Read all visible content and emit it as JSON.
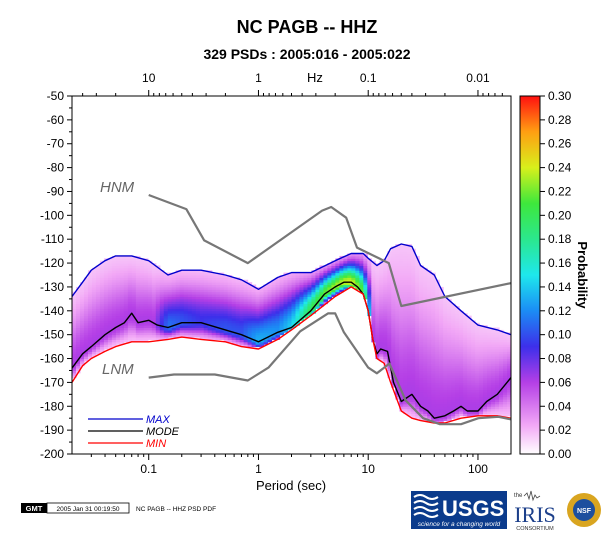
{
  "chart_data": {
    "type": "heatmap",
    "title": "NC PAGB -- HHZ",
    "subtitle": "329 PSDs : 2005:016 - 2005:022",
    "xlabel": "Period (sec)",
    "x_scale": "log",
    "xlim": [
      0.02,
      200
    ],
    "x_ticks": [
      0.1,
      1,
      10,
      100
    ],
    "top_axis_label": "Hz",
    "top_ticks": [
      10,
      1,
      0.1,
      0.01
    ],
    "ylabel": "",
    "ylim": [
      -200,
      -50
    ],
    "y_ticks": [
      -50,
      -60,
      -70,
      -80,
      -90,
      -100,
      -110,
      -120,
      -130,
      -140,
      -150,
      -160,
      -170,
      -180,
      -190,
      -200
    ],
    "colorbar": {
      "label": "Probability",
      "range": [
        0,
        0.3
      ],
      "ticks": [
        "0.00",
        "0.02",
        "0.04",
        "0.06",
        "0.08",
        "0.10",
        "0.12",
        "0.14",
        "0.16",
        "0.18",
        "0.20",
        "0.22",
        "0.24",
        "0.26",
        "0.28",
        "0.30"
      ]
    },
    "grid": false,
    "legend_position": "bottom-left",
    "series": [
      {
        "name": "MAX",
        "color": "#0000cc",
        "x": [
          0.02,
          0.025,
          0.03,
          0.04,
          0.05,
          0.07,
          0.1,
          0.15,
          0.2,
          0.3,
          0.5,
          0.7,
          1,
          1.5,
          2,
          3,
          5,
          7,
          9,
          10,
          12,
          14,
          16,
          20,
          25,
          30,
          40,
          50,
          70,
          100,
          150,
          200
        ],
        "y": [
          -134,
          -128,
          -123,
          -119,
          -117,
          -117,
          -119,
          -125,
          -123,
          -123,
          -125,
          -127,
          -131,
          -126,
          -124,
          -124,
          -119,
          -116,
          -116,
          -118,
          -121,
          -119,
          -114,
          -112,
          -113,
          -121,
          -125,
          -134,
          -140,
          -146,
          -148,
          -150
        ]
      },
      {
        "name": "MODE",
        "color": "#000000",
        "x": [
          0.02,
          0.025,
          0.03,
          0.04,
          0.05,
          0.06,
          0.07,
          0.08,
          0.1,
          0.12,
          0.15,
          0.2,
          0.3,
          0.5,
          0.7,
          1,
          1.5,
          2,
          3,
          4,
          5,
          6,
          7,
          8,
          9,
          10,
          11,
          12,
          13,
          15,
          17,
          20,
          25,
          30,
          35,
          40,
          50,
          60,
          70,
          80,
          100,
          120,
          150,
          200
        ],
        "y": [
          -164,
          -158,
          -155,
          -150,
          -147,
          -145,
          -141,
          -145,
          -144,
          -146,
          -147,
          -145,
          -145,
          -148,
          -150,
          -153,
          -149,
          -147,
          -140,
          -133,
          -130,
          -128,
          -128,
          -130,
          -133,
          -140,
          -152,
          -158,
          -156,
          -157,
          -170,
          -178,
          -175,
          -180,
          -182,
          -185,
          -184,
          -182,
          -180,
          -182,
          -182,
          -178,
          -175,
          -168
        ]
      },
      {
        "name": "MIN",
        "color": "#ff0000",
        "x": [
          0.02,
          0.025,
          0.03,
          0.04,
          0.05,
          0.07,
          0.1,
          0.15,
          0.2,
          0.3,
          0.5,
          0.7,
          1,
          1.5,
          2,
          3,
          5,
          7,
          9,
          10,
          11,
          12,
          14,
          16,
          20,
          25,
          30,
          40,
          50,
          70,
          100,
          150,
          200
        ],
        "y": [
          -170,
          -163,
          -160,
          -157,
          -155,
          -153,
          -153,
          -152,
          -151,
          -152,
          -153,
          -155,
          -156,
          -152,
          -148,
          -142,
          -134,
          -130,
          -133,
          -140,
          -152,
          -160,
          -162,
          -170,
          -182,
          -185,
          -186,
          -187,
          -187,
          -185,
          -184,
          -184,
          -185
        ]
      },
      {
        "name": "HNM",
        "color": "#777777",
        "x": [
          0.1,
          0.22,
          0.32,
          0.8,
          3.8,
          4.6,
          6.3,
          7.9,
          15.4,
          20,
          354.8
        ],
        "y": [
          -91.5,
          -97.4,
          -110.5,
          -120,
          -98,
          -96.5,
          -101,
          -113.5,
          -120,
          -138,
          -126
        ]
      },
      {
        "name": "LNM",
        "color": "#777777",
        "x": [
          0.1,
          0.17,
          0.4,
          0.8,
          1.24,
          2.4,
          4.3,
          5,
          6,
          10,
          12,
          15.6,
          21.9,
          31.6,
          45,
          70,
          101,
          154,
          328,
          600
        ],
        "y": [
          -168,
          -166.7,
          -166.7,
          -169.2,
          -163.7,
          -148.6,
          -141.1,
          -141.1,
          -149,
          -163.8,
          -166.2,
          -162.1,
          -177.5,
          -185,
          -187.5,
          -187.5,
          -185,
          -184.4,
          -187.5,
          -187.5
        ]
      }
    ]
  },
  "labels": {
    "hnm": "HNM",
    "lnm": "LNM"
  },
  "legend": [
    {
      "label": "MAX",
      "color": "#0000cc"
    },
    {
      "label": "MODE",
      "color": "#000000"
    },
    {
      "label": "MIN",
      "color": "#ff0000"
    }
  ],
  "footer": {
    "gmt_badge": "GMT",
    "timestamp": "2005 Jan 31 00:19:50",
    "caption": "NC PAGB -- HHZ PSD PDF"
  },
  "logos": {
    "usgs_name": "USGS",
    "usgs_tagline": "science for a changing world",
    "iris_the": "the",
    "iris_name": "IRIS",
    "iris_sub": "CONSORTIUM",
    "nsf_name": "NSF"
  }
}
